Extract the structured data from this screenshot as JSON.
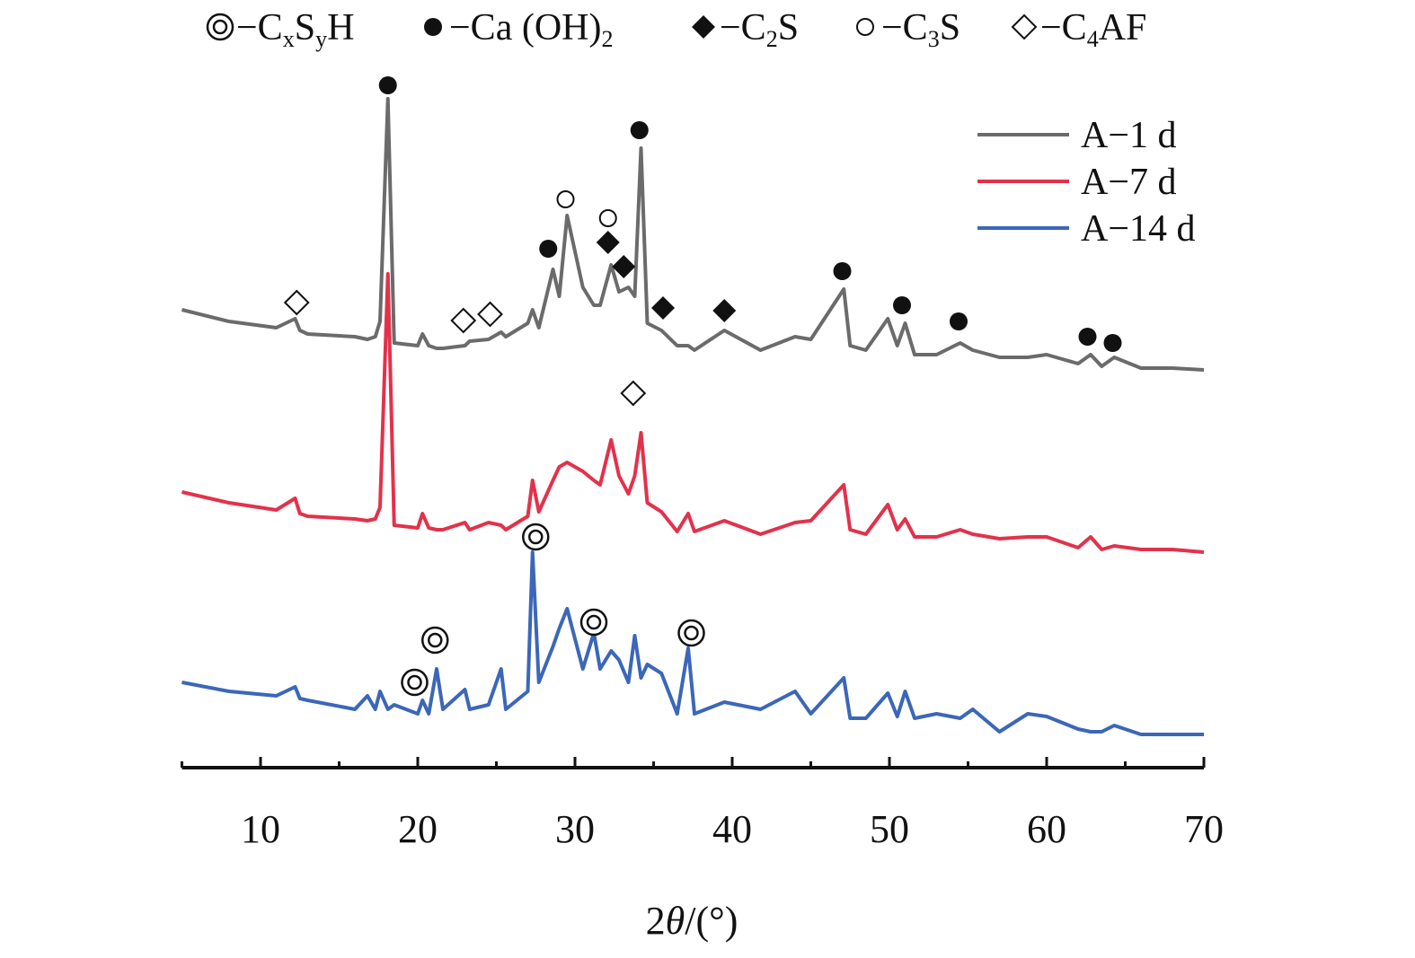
{
  "chart_data": {
    "type": "line",
    "xlabel": [
      "2",
      "θ",
      "/(°)"
    ],
    "xlim": [
      5,
      70
    ],
    "xticks": [
      10,
      20,
      30,
      40,
      50,
      60,
      70
    ],
    "xminorticks": [
      5,
      15,
      25,
      35,
      45,
      55,
      65
    ],
    "ylim": [
      0,
      765
    ],
    "legend": "upper right",
    "x": [
      5,
      8,
      11,
      12.2,
      12.5,
      13,
      16,
      16.8,
      17.3,
      17.6,
      18.1,
      18.5,
      20,
      20.3,
      20.7,
      21.2,
      21.6,
      23,
      23.3,
      24.5,
      25.3,
      25.6,
      27,
      27.3,
      27.7,
      28.6,
      29,
      29.5,
      30.5,
      31.2,
      31.6,
      32.3,
      32.8,
      33.4,
      33.8,
      34.2,
      34.6,
      35.5,
      36.5,
      37.2,
      37.6,
      39.5,
      41.8,
      44,
      45,
      47.1,
      47.5,
      48.5,
      49.9,
      50.5,
      51,
      51.6,
      53,
      54.5,
      55.3,
      57,
      58.8,
      60,
      62,
      62.8,
      63.5,
      64.3,
      66,
      68,
      70
    ],
    "series": [
      {
        "name": "A−1 d",
        "color": "#6b6b6b",
        "values": [
          510,
          497,
          490,
          500,
          487,
          483,
          480,
          477,
          480,
          497,
          745,
          473,
          470,
          483,
          470,
          467,
          467,
          470,
          475,
          477,
          485,
          480,
          495,
          510,
          490,
          555,
          525,
          615,
          535,
          515,
          515,
          560,
          530,
          535,
          525,
          690,
          495,
          487,
          470,
          470,
          465,
          487,
          465,
          480,
          477,
          533,
          470,
          465,
          500,
          470,
          495,
          460,
          460,
          473,
          465,
          457,
          457,
          460,
          450,
          460,
          447,
          457,
          445,
          445,
          443
        ]
      },
      {
        "name": "A−7 d",
        "color": "#e2324b",
        "values": [
          307,
          295,
          287,
          300,
          283,
          280,
          277,
          275,
          277,
          290,
          550,
          270,
          267,
          283,
          267,
          265,
          265,
          273,
          265,
          273,
          270,
          265,
          280,
          320,
          285,
          320,
          335,
          340,
          330,
          320,
          315,
          365,
          325,
          305,
          325,
          373,
          295,
          285,
          263,
          283,
          263,
          275,
          260,
          273,
          275,
          315,
          265,
          260,
          293,
          265,
          277,
          257,
          257,
          265,
          260,
          255,
          257,
          257,
          245,
          257,
          243,
          247,
          243,
          243,
          240
        ]
      },
      {
        "name": "A−14 d",
        "color": "#3b67b9",
        "values": [
          95,
          85,
          80,
          90,
          77,
          75,
          65,
          80,
          65,
          85,
          65,
          70,
          60,
          75,
          60,
          110,
          65,
          87,
          65,
          70,
          110,
          65,
          85,
          240,
          95,
          135,
          155,
          177,
          110,
          150,
          110,
          130,
          120,
          95,
          147,
          100,
          115,
          105,
          60,
          133,
          60,
          73,
          65,
          85,
          60,
          100,
          55,
          55,
          83,
          57,
          85,
          55,
          60,
          55,
          65,
          40,
          60,
          57,
          43,
          40,
          40,
          47,
          37,
          37,
          37
        ]
      }
    ],
    "phases": [
      {
        "symbol": "double-circle",
        "label": [
          "−C",
          "x",
          "S",
          "y",
          "H"
        ]
      },
      {
        "symbol": "filled-circle",
        "label": [
          "−Ca (OH)",
          "2"
        ]
      },
      {
        "symbol": "filled-diamond",
        "label": [
          "−C",
          "2",
          "S"
        ]
      },
      {
        "symbol": "open-circle",
        "label": [
          "−C",
          "3",
          "S"
        ]
      },
      {
        "symbol": "open-diamond",
        "label": [
          "−C",
          "4",
          "AF"
        ]
      }
    ],
    "markers": [
      {
        "phase": 1,
        "x": 18.1,
        "y": 760
      },
      {
        "phase": 1,
        "x": 34.1,
        "y": 710
      },
      {
        "phase": 1,
        "x": 28.3,
        "y": 578
      },
      {
        "phase": 1,
        "x": 47.0,
        "y": 553
      },
      {
        "phase": 1,
        "x": 50.8,
        "y": 515
      },
      {
        "phase": 1,
        "x": 54.4,
        "y": 497
      },
      {
        "phase": 1,
        "x": 62.6,
        "y": 480
      },
      {
        "phase": 1,
        "x": 64.2,
        "y": 473
      },
      {
        "phase": 3,
        "x": 29.4,
        "y": 633
      },
      {
        "phase": 3,
        "x": 32.1,
        "y": 612
      },
      {
        "phase": 2,
        "x": 32.1,
        "y": 585
      },
      {
        "phase": 2,
        "x": 33.1,
        "y": 558
      },
      {
        "phase": 2,
        "x": 35.6,
        "y": 512
      },
      {
        "phase": 2,
        "x": 39.5,
        "y": 509
      },
      {
        "phase": 4,
        "x": 12.3,
        "y": 518
      },
      {
        "phase": 4,
        "x": 22.9,
        "y": 498
      },
      {
        "phase": 4,
        "x": 24.6,
        "y": 505
      },
      {
        "phase": 4,
        "x": 33.7,
        "y": 417
      },
      {
        "phase": 0,
        "x": 27.5,
        "y": 257
      },
      {
        "phase": 0,
        "x": 21.1,
        "y": 142
      },
      {
        "phase": 0,
        "x": 19.8,
        "y": 95
      },
      {
        "phase": 0,
        "x": 31.2,
        "y": 162
      },
      {
        "phase": 0,
        "x": 37.4,
        "y": 150
      }
    ]
  }
}
